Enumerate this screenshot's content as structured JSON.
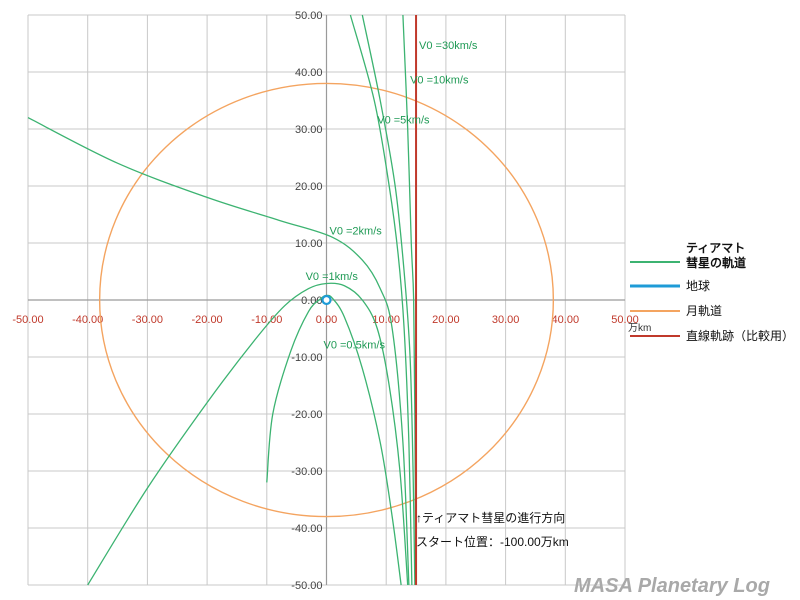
{
  "chart_data": {
    "type": "line",
    "xlim": [
      -50,
      50
    ],
    "ylim": [
      -50,
      50
    ],
    "x_ticks": [
      "-50.00",
      "-40.00",
      "-30.00",
      "-20.00",
      "-10.00",
      "0.00",
      "10.00",
      "20.00",
      "30.00",
      "40.00",
      "50.00"
    ],
    "y_ticks": [
      "50.00",
      "40.00",
      "30.00",
      "20.00",
      "10.00",
      "0.00",
      "-10.00",
      "-20.00",
      "-30.00",
      "-40.00",
      "-50.00"
    ],
    "x_unit": "万km",
    "grid": true,
    "legend_position": "right",
    "legend": [
      {
        "label": "ティアマト\n彗星の軌道",
        "color": "#3cb371"
      },
      {
        "label": "地球",
        "color": "#1e9bd7"
      },
      {
        "label": "月軌道",
        "color": "#f4a460"
      },
      {
        "label": "直線軌跡（比較用）",
        "color": "#c0392b"
      }
    ],
    "series": [
      {
        "name": "V0 =30km/s",
        "color": "#3cb371",
        "points": [
          [
            12.8,
            50
          ],
          [
            13.6,
            30
          ],
          [
            14.2,
            10
          ],
          [
            14.6,
            0
          ],
          [
            14.8,
            -20
          ],
          [
            14.95,
            -50
          ]
        ]
      },
      {
        "name": "V0 =10km/s",
        "color": "#3cb371",
        "points": [
          [
            6,
            50
          ],
          [
            9,
            35
          ],
          [
            11.5,
            20
          ],
          [
            13,
            5
          ],
          [
            14,
            -10
          ],
          [
            14.5,
            -30
          ],
          [
            14.8,
            -50
          ]
        ]
      },
      {
        "name": "V0 =5km/s",
        "color": "#3cb371",
        "points": [
          [
            4,
            50
          ],
          [
            8,
            35
          ],
          [
            10.5,
            20
          ],
          [
            12,
            8
          ],
          [
            13,
            -5
          ],
          [
            13.8,
            -25
          ],
          [
            14.3,
            -50
          ]
        ]
      },
      {
        "name": "V0 =2km/s",
        "color": "#3cb371",
        "points": [
          [
            -50,
            32
          ],
          [
            -35,
            24
          ],
          [
            -20,
            18
          ],
          [
            -8,
            14
          ],
          [
            1,
            11
          ],
          [
            6,
            7
          ],
          [
            9,
            2
          ],
          [
            11,
            -5
          ],
          [
            12.8,
            -25
          ],
          [
            13.8,
            -50
          ]
        ]
      },
      {
        "name": "V0 =1km/s",
        "color": "#3cb371",
        "points": [
          [
            -40,
            -50
          ],
          [
            -30,
            -33
          ],
          [
            -20,
            -18
          ],
          [
            -12,
            -7
          ],
          [
            -7,
            -1
          ],
          [
            -3,
            2
          ],
          [
            0,
            2.9
          ],
          [
            3,
            2.5
          ],
          [
            6,
            0
          ],
          [
            8.5,
            -5
          ],
          [
            10.5,
            -15
          ],
          [
            12.3,
            -30
          ],
          [
            13.6,
            -50
          ]
        ]
      },
      {
        "name": "V0 =0.5km/s",
        "color": "#3cb371",
        "points": [
          [
            -10,
            -32
          ],
          [
            -9,
            -20
          ],
          [
            -6,
            -9
          ],
          [
            -3,
            -2
          ],
          [
            -1,
            0.2
          ],
          [
            0,
            0.8
          ],
          [
            1,
            0.3
          ],
          [
            3,
            -3
          ],
          [
            6,
            -12
          ],
          [
            9,
            -25
          ],
          [
            11,
            -38
          ],
          [
            12.5,
            -50
          ]
        ]
      },
      {
        "name": "直線軌跡（比較用）",
        "color": "#c0392b",
        "points": [
          [
            15,
            50
          ],
          [
            15,
            -50
          ]
        ]
      }
    ],
    "earth": {
      "x": 0,
      "y": 0,
      "label": "地球"
    },
    "moon_orbit": {
      "cx": 0,
      "cy": 0,
      "r": 38,
      "label": "月軌道"
    },
    "annotations": {
      "labels": [
        {
          "text": "V0 =30km/s",
          "x": 15.5,
          "y": 44
        },
        {
          "text": "V0 =10km/s",
          "x": 14,
          "y": 38
        },
        {
          "text": "V0 =5km/s",
          "x": 8.5,
          "y": 31
        },
        {
          "text": "V0 =2km/s",
          "x": 0.5,
          "y": 11.5
        },
        {
          "text": "V0 =1km/s",
          "x": -3.5,
          "y": 3.5
        },
        {
          "text": "V0 =0.5km/s",
          "x": -0.5,
          "y": -8.5
        }
      ],
      "note1": "↑ティアマト彗星の進行方向",
      "note2": "スタート位置：-100.00万km",
      "watermark": "MASA Planetary Log"
    }
  }
}
